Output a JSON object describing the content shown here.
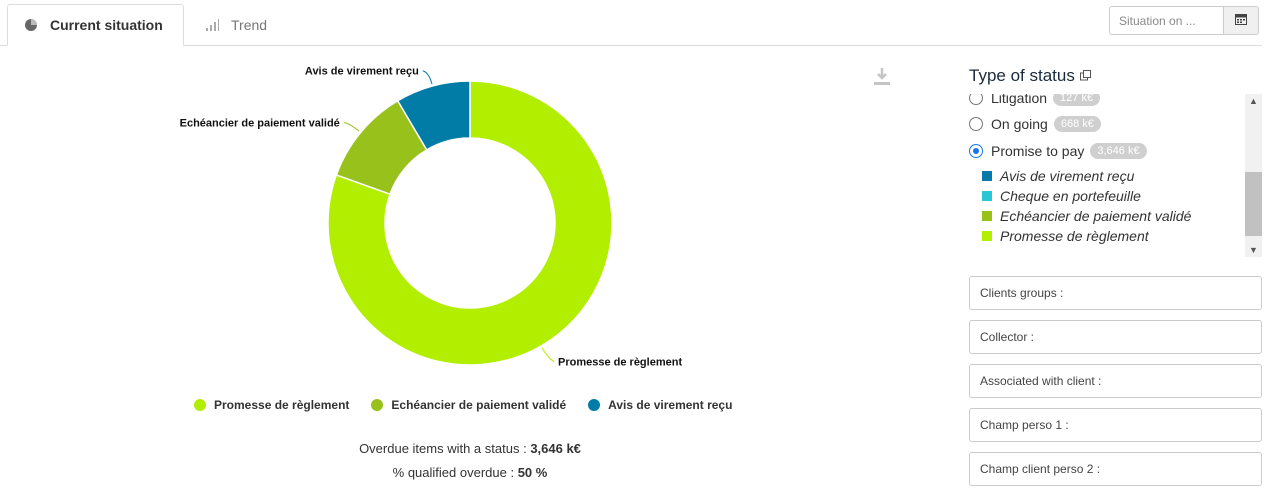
{
  "tabs": {
    "current": "Current situation",
    "trend": "Trend"
  },
  "situation_on": {
    "placeholder": "Situation on ..."
  },
  "chart_data": {
    "type": "pie",
    "variant": "donut",
    "categories": [
      "Promesse de règlement",
      "Echéancier de paiement validé",
      "Avis de virement reçu"
    ],
    "values": [
      80.5,
      11,
      8.5
    ],
    "colors": [
      "#b2ee00",
      "#98c11c",
      "#007ca6"
    ],
    "legend": "bottom"
  },
  "summary": {
    "overdue_label": "Overdue items with a status :",
    "overdue_value": "3,646 k€",
    "qualified_label": "% qualified overdue :",
    "qualified_value": "50 %"
  },
  "status_panel": {
    "title": "Type of status",
    "options": [
      {
        "label": "Litigation",
        "badge": "127 k€",
        "checked": false
      },
      {
        "label": "On going",
        "badge": "668 k€",
        "checked": false
      },
      {
        "label": "Promise to pay",
        "badge": "3,646 k€",
        "checked": true
      }
    ],
    "sub_items": [
      {
        "label": "Avis de virement reçu",
        "color": "#0a7ba8"
      },
      {
        "label": "Cheque en portefeuille",
        "color": "#2bc6d6"
      },
      {
        "label": "Echéancier de paiement validé",
        "color": "#98c11c"
      },
      {
        "label": "Promesse de règlement",
        "color": "#b2ee00"
      }
    ]
  },
  "filters": [
    "Clients groups :",
    "Collector :",
    "Associated with client :",
    "Champ perso 1 :",
    "Champ client perso 2 :"
  ]
}
